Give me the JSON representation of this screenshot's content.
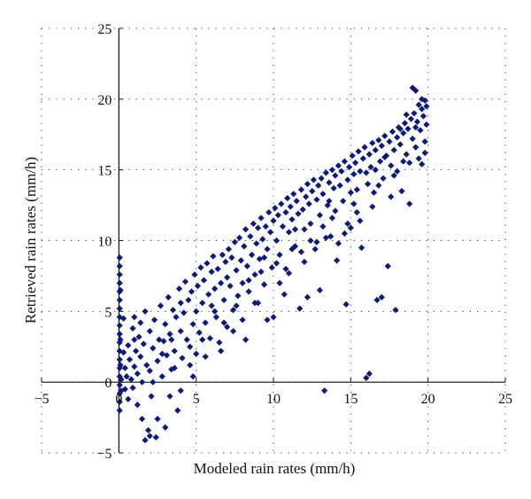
{
  "chart_data": {
    "type": "scatter",
    "title": "",
    "xlabel": "Modeled rain rates (mm/h)",
    "ylabel": "Retrieved rain rates (mm/h)",
    "xlim": [
      -5,
      25
    ],
    "ylim": [
      -5,
      25
    ],
    "xticks": [
      -5,
      0,
      5,
      10,
      15,
      20,
      25
    ],
    "yticks": [
      -5,
      0,
      5,
      10,
      15,
      20,
      25
    ],
    "xtick_labels": [
      "−5",
      "0",
      "5",
      "10",
      "15",
      "20",
      "25"
    ],
    "ytick_labels": [
      "−5",
      "0",
      "5",
      "10",
      "15",
      "20",
      "25"
    ],
    "grid": true,
    "grid_style": "dotted",
    "axes_origin": "x axis at y=0, y axis at x=0",
    "marker": "diamond",
    "series": [
      {
        "color": "#0a1a78",
        "points": [
          [
            0.05,
            8.8
          ],
          [
            0.05,
            8.2
          ],
          [
            0.05,
            7.6
          ],
          [
            0.05,
            7.0
          ],
          [
            0.05,
            6.4
          ],
          [
            0.05,
            5.8
          ],
          [
            0.05,
            5.2
          ],
          [
            0.05,
            4.6
          ],
          [
            0.05,
            4.0
          ],
          [
            0.05,
            3.4
          ],
          [
            0.05,
            2.8
          ],
          [
            0.05,
            2.2
          ],
          [
            0.05,
            1.6
          ],
          [
            0.05,
            1.0
          ],
          [
            0.05,
            0.4
          ],
          [
            0.05,
            -0.2
          ],
          [
            0.05,
            -0.8
          ],
          [
            0.05,
            -1.4
          ],
          [
            0.05,
            -2.0
          ],
          [
            0.1,
            6.5
          ],
          [
            0.1,
            3.0
          ],
          [
            0.1,
            1.2
          ],
          [
            0.15,
            0.2
          ],
          [
            0.15,
            -0.6
          ],
          [
            0.3,
            4.5
          ],
          [
            0.3,
            2.1
          ],
          [
            0.4,
            1.0
          ],
          [
            0.4,
            -0.5
          ],
          [
            0.5,
            0.4
          ],
          [
            0.6,
            2.6
          ],
          [
            0.6,
            -1.2
          ],
          [
            0.7,
            1.6
          ],
          [
            0.8,
            0.2
          ],
          [
            0.9,
            3.8
          ],
          [
            0.9,
            -0.4
          ],
          [
            1.0,
            1.1
          ],
          [
            1.0,
            4.6
          ],
          [
            1.1,
            2.2
          ],
          [
            1.2,
            -1.6
          ],
          [
            1.2,
            0.6
          ],
          [
            1.3,
            3.2
          ],
          [
            1.4,
            1.8
          ],
          [
            1.5,
            -2.6
          ],
          [
            1.5,
            0.0
          ],
          [
            1.6,
            2.7
          ],
          [
            1.7,
            5.0
          ],
          [
            1.8,
            1.2
          ],
          [
            1.9,
            -3.4
          ],
          [
            2.0,
            3.6
          ],
          [
            2.0,
            0.8
          ],
          [
            2.1,
            -1.0
          ],
          [
            2.2,
            2.4
          ],
          [
            2.3,
            4.4
          ],
          [
            2.4,
            -3.9
          ],
          [
            2.5,
            1.5
          ],
          [
            2.6,
            3.0
          ],
          [
            2.7,
            5.4
          ],
          [
            2.8,
            0.4
          ],
          [
            2.9,
            2.9
          ],
          [
            3.0,
            4.1
          ],
          [
            3.0,
            -3.2
          ],
          [
            3.1,
            1.9
          ],
          [
            3.2,
            6.0
          ],
          [
            3.3,
            3.4
          ],
          [
            3.4,
            0.9
          ],
          [
            3.5,
            5.1
          ],
          [
            3.6,
            2.2
          ],
          [
            3.7,
            4.6
          ],
          [
            3.8,
            -2.0
          ],
          [
            3.9,
            6.6
          ],
          [
            4.0,
            3.6
          ],
          [
            4.0,
            5.6
          ],
          [
            4.1,
            1.7
          ],
          [
            4.2,
            4.9
          ],
          [
            4.3,
            7.1
          ],
          [
            4.4,
            3.0
          ],
          [
            4.5,
            5.8
          ],
          [
            4.6,
            2.5
          ],
          [
            4.7,
            6.4
          ],
          [
            4.8,
            4.1
          ],
          [
            4.9,
            7.6
          ],
          [
            5.0,
            5.0
          ],
          [
            5.0,
            2.0
          ],
          [
            5.1,
            6.8
          ],
          [
            5.2,
            3.5
          ],
          [
            5.3,
            8.1
          ],
          [
            5.4,
            5.6
          ],
          [
            5.5,
            7.2
          ],
          [
            5.6,
            4.2
          ],
          [
            5.7,
            8.4
          ],
          [
            5.8,
            6.2
          ],
          [
            5.9,
            3.1
          ],
          [
            6.0,
            7.8
          ],
          [
            6.0,
            5.4
          ],
          [
            6.1,
            8.9
          ],
          [
            6.2,
            6.6
          ],
          [
            6.3,
            4.6
          ],
          [
            6.4,
            8.0
          ],
          [
            6.5,
            2.8
          ],
          [
            6.6,
            7.0
          ],
          [
            6.7,
            9.0
          ],
          [
            6.8,
            5.8
          ],
          [
            6.9,
            8.5
          ],
          [
            7.0,
            7.4
          ],
          [
            7.0,
            3.9
          ],
          [
            7.1,
            9.4
          ],
          [
            7.2,
            6.8
          ],
          [
            7.3,
            8.8
          ],
          [
            7.4,
            5.1
          ],
          [
            7.5,
            9.9
          ],
          [
            7.6,
            7.9
          ],
          [
            7.7,
            6.1
          ],
          [
            7.8,
            10.2
          ],
          [
            7.9,
            8.6
          ],
          [
            8.0,
            7.0
          ],
          [
            8.0,
            4.4
          ],
          [
            8.1,
            9.6
          ],
          [
            8.2,
            10.8
          ],
          [
            8.3,
            8.2
          ],
          [
            8.4,
            6.4
          ],
          [
            8.5,
            10.3
          ],
          [
            8.6,
            9.0
          ],
          [
            8.7,
            11.2
          ],
          [
            8.8,
            7.6
          ],
          [
            8.9,
            9.8
          ],
          [
            9.0,
            10.9
          ],
          [
            9.0,
            5.6
          ],
          [
            9.1,
            8.7
          ],
          [
            9.2,
            11.6
          ],
          [
            9.3,
            10.1
          ],
          [
            9.4,
            6.9
          ],
          [
            9.5,
            11.0
          ],
          [
            9.6,
            9.4
          ],
          [
            9.7,
            12.0
          ],
          [
            9.8,
            10.6
          ],
          [
            9.9,
            8.1
          ],
          [
            10.0,
            11.4
          ],
          [
            10.0,
            4.6
          ],
          [
            10.1,
            12.3
          ],
          [
            10.2,
            10.0
          ],
          [
            10.3,
            11.8
          ],
          [
            10.4,
            9.0
          ],
          [
            10.5,
            12.6
          ],
          [
            10.6,
            11.0
          ],
          [
            10.7,
            6.2
          ],
          [
            10.8,
            12.0
          ],
          [
            10.9,
            13.0
          ],
          [
            11.0,
            10.6
          ],
          [
            11.0,
            7.7
          ],
          [
            11.1,
            12.4
          ],
          [
            11.2,
            11.5
          ],
          [
            11.3,
            13.3
          ],
          [
            11.4,
            9.6
          ],
          [
            11.5,
            12.8
          ],
          [
            11.6,
            11.9
          ],
          [
            11.7,
            5.2
          ],
          [
            11.8,
            13.6
          ],
          [
            11.9,
            12.2
          ],
          [
            12.0,
            10.8
          ],
          [
            12.0,
            8.5
          ],
          [
            12.1,
            13.1
          ],
          [
            12.2,
            14.0
          ],
          [
            12.3,
            12.6
          ],
          [
            12.4,
            11.2
          ],
          [
            12.5,
            13.5
          ],
          [
            12.6,
            14.3
          ],
          [
            12.7,
            9.4
          ],
          [
            12.8,
            12.9
          ],
          [
            12.9,
            13.9
          ],
          [
            13.0,
            11.8
          ],
          [
            13.0,
            6.5
          ],
          [
            13.1,
            14.4
          ],
          [
            13.2,
            13.3
          ],
          [
            13.3,
            -0.6
          ],
          [
            13.4,
            14.8
          ],
          [
            13.5,
            12.5
          ],
          [
            13.6,
            14.1
          ],
          [
            13.7,
            10.3
          ],
          [
            13.8,
            15.0
          ],
          [
            13.9,
            13.7
          ],
          [
            14.0,
            14.6
          ],
          [
            14.0,
            12.1
          ],
          [
            14.1,
            8.6
          ],
          [
            14.2,
            15.3
          ],
          [
            14.3,
            13.9
          ],
          [
            14.4,
            14.9
          ],
          [
            14.5,
            12.8
          ],
          [
            14.6,
            15.6
          ],
          [
            14.7,
            5.5
          ],
          [
            14.8,
            14.3
          ],
          [
            14.9,
            15.2
          ],
          [
            15.0,
            13.4
          ],
          [
            15.0,
            10.9
          ],
          [
            15.1,
            16.0
          ],
          [
            15.2,
            14.7
          ],
          [
            15.3,
            15.5
          ],
          [
            15.4,
            12.0
          ],
          [
            15.5,
            16.3
          ],
          [
            15.6,
            14.9
          ],
          [
            15.7,
            9.5
          ],
          [
            15.8,
            15.8
          ],
          [
            15.9,
            16.6
          ],
          [
            16.0,
            0.3
          ],
          [
            16.1,
            14.0
          ],
          [
            16.2,
            0.6
          ],
          [
            16.2,
            16.1
          ],
          [
            16.3,
            15.2
          ],
          [
            16.4,
            16.9
          ],
          [
            16.5,
            13.4
          ],
          [
            16.6,
            16.4
          ],
          [
            16.7,
            5.8
          ],
          [
            16.8,
            17.1
          ],
          [
            16.9,
            15.6
          ],
          [
            17.0,
            16.7
          ],
          [
            17.0,
            6.0
          ],
          [
            17.1,
            14.4
          ],
          [
            17.2,
            17.4
          ],
          [
            17.3,
            16.0
          ],
          [
            17.4,
            8.2
          ],
          [
            17.5,
            17.0
          ],
          [
            17.6,
            15.3
          ],
          [
            17.7,
            17.7
          ],
          [
            17.8,
            16.4
          ],
          [
            17.9,
            5.1
          ],
          [
            18.0,
            17.3
          ],
          [
            18.0,
            14.9
          ],
          [
            18.1,
            18.0
          ],
          [
            18.2,
            16.8
          ],
          [
            18.3,
            13.5
          ],
          [
            18.4,
            17.6
          ],
          [
            18.5,
            18.3
          ],
          [
            18.6,
            16.1
          ],
          [
            18.7,
            17.9
          ],
          [
            18.8,
            15.5
          ],
          [
            18.9,
            18.6
          ],
          [
            19.0,
            20.8
          ],
          [
            19.0,
            17.2
          ],
          [
            19.1,
            19.0
          ],
          [
            19.2,
            20.6
          ],
          [
            19.2,
            16.6
          ],
          [
            19.3,
            18.4
          ],
          [
            19.4,
            19.6
          ],
          [
            19.5,
            17.8
          ],
          [
            19.6,
            19.3
          ],
          [
            19.6,
            15.4
          ],
          [
            19.7,
            18.8
          ],
          [
            19.8,
            19.9
          ],
          [
            19.8,
            17.0
          ],
          [
            19.9,
            18.2
          ],
          [
            19.9,
            19.5
          ],
          [
            1.0,
            3.0
          ],
          [
            1.4,
            4.2
          ],
          [
            2.2,
            0.0
          ],
          [
            2.8,
            2.0
          ],
          [
            3.4,
            3.0
          ],
          [
            3.6,
            1.0
          ],
          [
            4.6,
            1.2
          ],
          [
            5.4,
            3.0
          ],
          [
            6.2,
            5.0
          ],
          [
            6.8,
            4.2
          ],
          [
            7.6,
            5.4
          ],
          [
            8.4,
            7.2
          ],
          [
            8.8,
            5.6
          ],
          [
            9.2,
            7.8
          ],
          [
            9.6,
            4.4
          ],
          [
            10.4,
            7.0
          ],
          [
            10.8,
            8.0
          ],
          [
            11.4,
            10.8
          ],
          [
            11.8,
            9.2
          ],
          [
            12.2,
            6.0
          ],
          [
            12.8,
            9.9
          ],
          [
            13.4,
            10.2
          ],
          [
            13.8,
            11.6
          ],
          [
            14.2,
            9.8
          ],
          [
            14.6,
            10.5
          ],
          [
            15.2,
            12.6
          ],
          [
            15.6,
            11.4
          ],
          [
            16.4,
            12.4
          ],
          [
            16.8,
            13.9
          ],
          [
            17.6,
            13.1
          ],
          [
            18.4,
            15.6
          ],
          [
            18.8,
            12.6
          ],
          [
            19.4,
            15.8
          ],
          [
            19.8,
            16.2
          ],
          [
            2.0,
            -3.8
          ],
          [
            2.5,
            -2.6
          ],
          [
            1.7,
            -4.1
          ],
          [
            3.3,
            -1.0
          ],
          [
            4.0,
            -0.6
          ],
          [
            4.8,
            0.4
          ],
          [
            5.6,
            1.8
          ],
          [
            6.6,
            2.2
          ],
          [
            7.4,
            3.6
          ],
          [
            8.2,
            3.0
          ],
          [
            9.4,
            8.8
          ],
          [
            10.2,
            8.4
          ],
          [
            11.2,
            9.4
          ],
          [
            12.4,
            10.0
          ],
          [
            13.2,
            11.0
          ],
          [
            13.6,
            12.8
          ],
          [
            14.8,
            11.2
          ],
          [
            15.4,
            13.6
          ],
          [
            16.0,
            14.8
          ],
          [
            16.6,
            15.0
          ],
          [
            17.2,
            15.9
          ],
          [
            17.8,
            14.6
          ],
          [
            18.2,
            17.9
          ],
          [
            18.6,
            18.9
          ],
          [
            19.2,
            18.0
          ],
          [
            19.6,
            20.0
          ]
        ]
      }
    ]
  }
}
